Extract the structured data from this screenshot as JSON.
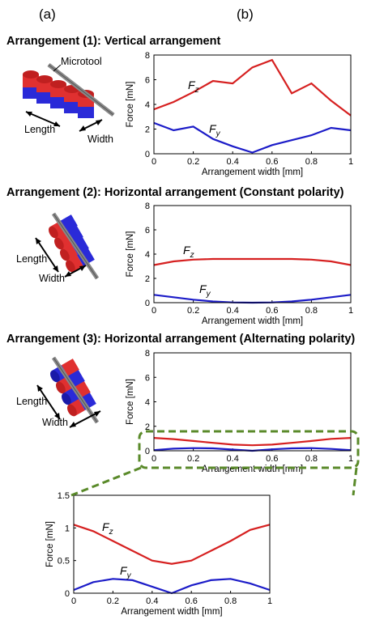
{
  "panels": {
    "a": "(a)",
    "b": "(b)"
  },
  "headings": [
    "Arrangement (1): Vertical arrangement",
    "Arrangement (2): Horizontal arrangement (Constant polarity)",
    "Arrangement (3): Horizontal arrangement (Alternating polarity)"
  ],
  "schematic": {
    "microtool": "Microtool",
    "length": "Length",
    "width": "Width"
  },
  "colors": {
    "fz": "#d62020",
    "fy": "#1c1cc8",
    "zoom": "#5a8a2a",
    "magnet_red": "#e03030",
    "magnet_blue": "#2a2ad8"
  },
  "chart_data": [
    {
      "type": "line",
      "title": "",
      "xlabel": "Arrangement width [mm]",
      "ylabel": "Force [mN]",
      "xlim": [
        0,
        1
      ],
      "ylim": [
        0,
        8
      ],
      "xticks": [
        "0",
        "0.2",
        "0.4",
        "0.6",
        "0.8",
        "1"
      ],
      "yticks": [
        "0",
        "2",
        "4",
        "6",
        "8"
      ],
      "x": [
        0,
        0.1,
        0.2,
        0.3,
        0.4,
        0.5,
        0.6,
        0.7,
        0.8,
        0.9,
        1.0
      ],
      "series": [
        {
          "name": "Fz",
          "values": [
            3.6,
            4.2,
            5.0,
            5.9,
            5.7,
            7.0,
            7.6,
            4.9,
            5.7,
            4.3,
            3.1
          ]
        },
        {
          "name": "Fy",
          "values": [
            2.5,
            1.9,
            2.2,
            1.2,
            0.6,
            0.1,
            0.7,
            1.1,
            1.5,
            2.1,
            1.9
          ]
        }
      ]
    },
    {
      "type": "line",
      "title": "",
      "xlabel": "Arrangement width [mm]",
      "ylabel": "Force [mN]",
      "xlim": [
        0,
        1
      ],
      "ylim": [
        0,
        8
      ],
      "xticks": [
        "0",
        "0.2",
        "0.4",
        "0.6",
        "0.8",
        "1"
      ],
      "yticks": [
        "0",
        "2",
        "4",
        "6",
        "8"
      ],
      "x": [
        0,
        0.1,
        0.2,
        0.3,
        0.4,
        0.5,
        0.6,
        0.7,
        0.8,
        0.9,
        1.0
      ],
      "series": [
        {
          "name": "Fz",
          "values": [
            3.1,
            3.4,
            3.55,
            3.6,
            3.6,
            3.6,
            3.6,
            3.6,
            3.55,
            3.4,
            3.1
          ]
        },
        {
          "name": "Fy",
          "values": [
            0.65,
            0.45,
            0.25,
            0.1,
            0.02,
            0.0,
            0.02,
            0.1,
            0.25,
            0.45,
            0.65
          ]
        }
      ]
    },
    {
      "type": "line",
      "title": "",
      "xlabel": "Arrangement width [mm]",
      "ylabel": "Force [mN]",
      "xlim": [
        0,
        1
      ],
      "ylim": [
        0,
        8
      ],
      "xticks": [
        "0",
        "0.2",
        "0.4",
        "0.6",
        "0.8",
        "1"
      ],
      "yticks": [
        "0",
        "2",
        "4",
        "6",
        "8"
      ],
      "x": [
        0,
        0.1,
        0.2,
        0.3,
        0.4,
        0.5,
        0.6,
        0.7,
        0.8,
        0.9,
        1.0
      ],
      "series": [
        {
          "name": "Fz",
          "values": [
            1.05,
            0.95,
            0.8,
            0.65,
            0.5,
            0.45,
            0.5,
            0.65,
            0.8,
            0.97,
            1.05
          ]
        },
        {
          "name": "Fy",
          "values": [
            0.05,
            0.17,
            0.22,
            0.2,
            0.1,
            0.0,
            0.12,
            0.2,
            0.22,
            0.15,
            0.05
          ]
        }
      ]
    },
    {
      "type": "line",
      "title": "",
      "xlabel": "Arrangement width [mm]",
      "ylabel": "Force [mN]",
      "xlim": [
        0,
        1
      ],
      "ylim": [
        0,
        1.5
      ],
      "xticks": [
        "0",
        "0.2",
        "0.4",
        "0.6",
        "0.8",
        "1"
      ],
      "yticks": [
        "0",
        "0.5",
        "1",
        "1.5"
      ],
      "x": [
        0,
        0.1,
        0.2,
        0.3,
        0.4,
        0.5,
        0.6,
        0.7,
        0.8,
        0.9,
        1.0
      ],
      "series": [
        {
          "name": "Fz",
          "values": [
            1.05,
            0.95,
            0.8,
            0.65,
            0.5,
            0.45,
            0.5,
            0.65,
            0.8,
            0.97,
            1.05
          ]
        },
        {
          "name": "Fy",
          "values": [
            0.05,
            0.17,
            0.22,
            0.2,
            0.1,
            0.0,
            0.12,
            0.2,
            0.22,
            0.15,
            0.05
          ]
        }
      ]
    }
  ]
}
